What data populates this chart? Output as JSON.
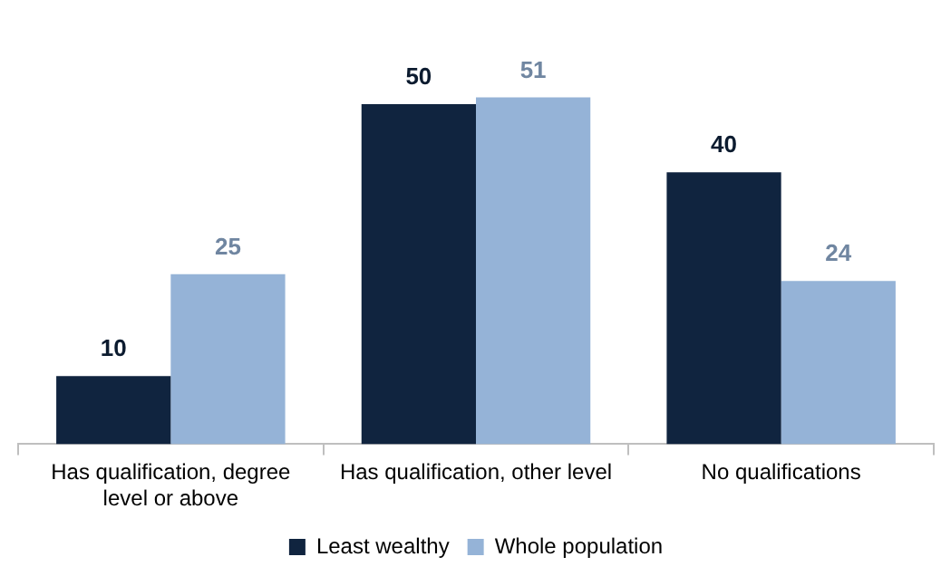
{
  "chart_data": {
    "type": "bar",
    "categories": [
      "Has qualification, degree level or above",
      "Has qualification, other level",
      "No qualifications"
    ],
    "series": [
      {
        "name": "Least wealthy",
        "color": "#10243f",
        "values": [
          10,
          50,
          40
        ]
      },
      {
        "name": "Whole population",
        "color": "#95b3d7",
        "values": [
          25,
          51,
          24
        ]
      }
    ],
    "data_labels": true,
    "legend": "bottom",
    "grid": false
  }
}
